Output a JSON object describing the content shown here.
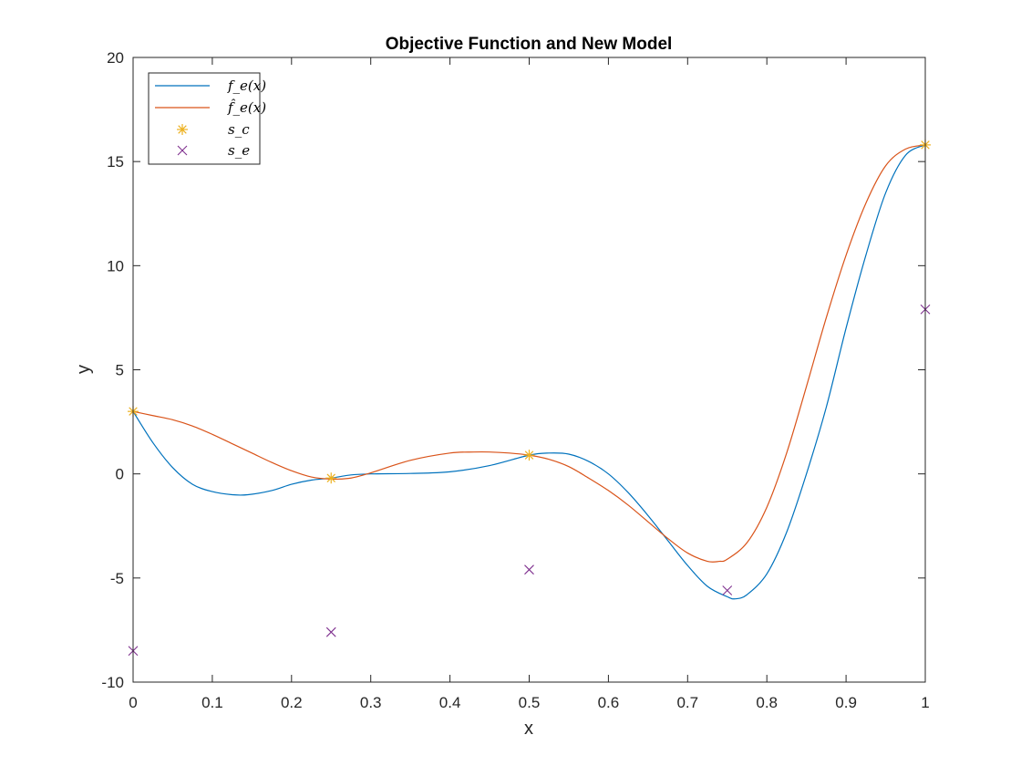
{
  "chart_data": {
    "type": "line",
    "title": "Objective Function and New Model",
    "xlabel": "x",
    "ylabel": "y",
    "xlim": [
      0,
      1
    ],
    "ylim": [
      -10,
      20
    ],
    "xticks": [
      0,
      0.1,
      0.2,
      0.3,
      0.4,
      0.5,
      0.6,
      0.7,
      0.8,
      0.9,
      1
    ],
    "xtick_labels": [
      "0",
      "0.1",
      "0.2",
      "0.3",
      "0.4",
      "0.5",
      "0.6",
      "0.7",
      "0.8",
      "0.9",
      "1"
    ],
    "yticks": [
      -10,
      -5,
      0,
      5,
      10,
      15,
      20
    ],
    "ytick_labels": [
      "-10",
      "-5",
      "0",
      "5",
      "10",
      "15",
      "20"
    ],
    "grid": false,
    "legend_position": "top-left",
    "series": [
      {
        "name": "f_e(x)",
        "kind": "line",
        "color": "#0072BD",
        "x": [
          0,
          0.025,
          0.05,
          0.075,
          0.1,
          0.125,
          0.145,
          0.175,
          0.2,
          0.225,
          0.25,
          0.275,
          0.3,
          0.35,
          0.4,
          0.45,
          0.5,
          0.525,
          0.55,
          0.575,
          0.6,
          0.625,
          0.65,
          0.675,
          0.7,
          0.725,
          0.75,
          0.76,
          0.775,
          0.8,
          0.825,
          0.85,
          0.875,
          0.9,
          0.925,
          0.95,
          0.975,
          1
        ],
        "y": [
          3.0,
          1.5,
          0.3,
          -0.5,
          -0.85,
          -1.0,
          -1.0,
          -0.8,
          -0.5,
          -0.3,
          -0.2,
          -0.05,
          0.0,
          0.02,
          0.1,
          0.4,
          0.9,
          1.0,
          0.95,
          0.6,
          0.0,
          -0.9,
          -2.0,
          -3.2,
          -4.4,
          -5.4,
          -5.9,
          -6.0,
          -5.8,
          -4.8,
          -2.8,
          0.0,
          3.2,
          7.0,
          10.5,
          13.5,
          15.3,
          15.8
        ]
      },
      {
        "name": "f̂_e(x)",
        "kind": "line",
        "color": "#D95319",
        "x": [
          0,
          0.025,
          0.05,
          0.075,
          0.1,
          0.125,
          0.15,
          0.175,
          0.2,
          0.225,
          0.25,
          0.275,
          0.3,
          0.35,
          0.4,
          0.43,
          0.45,
          0.475,
          0.5,
          0.525,
          0.55,
          0.575,
          0.6,
          0.625,
          0.65,
          0.675,
          0.7,
          0.725,
          0.74,
          0.75,
          0.775,
          0.8,
          0.825,
          0.85,
          0.875,
          0.9,
          0.925,
          0.95,
          0.975,
          1
        ],
        "y": [
          3.0,
          2.8,
          2.6,
          2.3,
          1.9,
          1.45,
          1.0,
          0.55,
          0.15,
          -0.15,
          -0.25,
          -0.2,
          0.05,
          0.65,
          1.0,
          1.05,
          1.05,
          1.0,
          0.9,
          0.7,
          0.35,
          -0.2,
          -0.8,
          -1.5,
          -2.3,
          -3.1,
          -3.8,
          -4.2,
          -4.2,
          -4.1,
          -3.3,
          -1.6,
          1.0,
          4.2,
          7.5,
          10.5,
          13.0,
          14.8,
          15.6,
          15.8
        ]
      },
      {
        "name": "s_c",
        "kind": "scatter",
        "marker": "asterisk",
        "color": "#EDB120",
        "x": [
          0,
          0.25,
          0.5,
          1
        ],
        "y": [
          3.0,
          -0.2,
          0.9,
          15.8
        ]
      },
      {
        "name": "s_e",
        "kind": "scatter",
        "marker": "x",
        "color": "#7E2F8E",
        "x": [
          0,
          0.25,
          0.5,
          0.75,
          1
        ],
        "y": [
          -8.5,
          -7.6,
          -4.6,
          -5.6,
          7.9
        ]
      }
    ]
  }
}
